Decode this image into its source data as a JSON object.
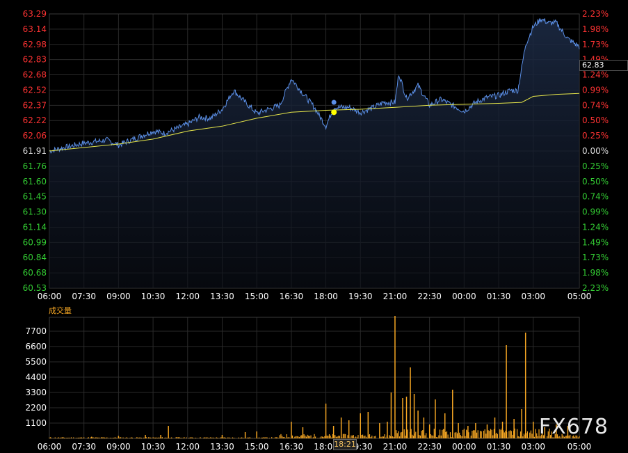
{
  "chart_data": [
    {
      "type": "line",
      "panel": "price",
      "left_axis_ticks": [
        "63.29",
        "63.14",
        "62.98",
        "62.83",
        "62.68",
        "62.52",
        "62.37",
        "62.22",
        "62.06",
        "61.91",
        "61.76",
        "61.60",
        "61.45",
        "61.30",
        "61.14",
        "60.99",
        "60.84",
        "60.68",
        "60.53"
      ],
      "right_axis_ticks": [
        "2.23%",
        "1.98%",
        "1.73%",
        "1.49%",
        "1.24%",
        "0.99%",
        "0.74%",
        "0.50%",
        "0.25%",
        "0.00%",
        "0.25%",
        "0.50%",
        "0.74%",
        "0.99%",
        "1.24%",
        "1.49%",
        "1.73%",
        "1.98%",
        "2.23%"
      ],
      "x_ticks": [
        "06:00",
        "07:30",
        "09:00",
        "10:30",
        "12:00",
        "13:30",
        "15:00",
        "16:30",
        "18:00",
        "19:30",
        "21:00",
        "22:30",
        "00:00",
        "01:30",
        "03:00",
        "05:00"
      ],
      "ylim": [
        60.53,
        63.29
      ],
      "reference_price": 61.91,
      "current_price": "62.83",
      "cursor_time": "18:21",
      "grid": true,
      "series": [
        {
          "color": "#5b8fe6",
          "x": [
            "06:00",
            "07:30",
            "08:30",
            "09:00",
            "10:30",
            "11:00",
            "12:00",
            "12:30",
            "13:00",
            "13:30",
            "14:00",
            "14:30",
            "15:00",
            "15:30",
            "16:00",
            "16:30",
            "17:00",
            "17:30",
            "18:00",
            "18:21",
            "19:00",
            "19:30",
            "20:00",
            "20:30",
            "21:00",
            "21:10",
            "21:30",
            "22:00",
            "22:30",
            "23:00",
            "23:30",
            "00:00",
            "00:30",
            "01:00",
            "01:30",
            "02:00",
            "02:20",
            "02:40",
            "03:00",
            "03:20",
            "03:40",
            "04:00",
            "04:30",
            "05:00"
          ],
          "values": [
            61.91,
            61.99,
            62.02,
            61.97,
            62.11,
            62.09,
            62.18,
            62.25,
            62.24,
            62.33,
            62.52,
            62.4,
            62.29,
            62.33,
            62.37,
            62.64,
            62.49,
            62.35,
            62.16,
            62.35,
            62.35,
            62.3,
            62.34,
            62.4,
            62.4,
            62.69,
            62.44,
            62.57,
            62.37,
            62.43,
            62.37,
            62.31,
            62.4,
            62.45,
            62.47,
            62.52,
            62.52,
            62.98,
            63.16,
            63.24,
            63.2,
            63.2,
            63.04,
            62.96
          ]
        },
        {
          "color": "#e6e64a",
          "x": [
            "06:00",
            "09:00",
            "10:30",
            "12:00",
            "13:30",
            "15:00",
            "16:30",
            "18:00",
            "19:30",
            "21:00",
            "22:30",
            "00:00",
            "01:30",
            "02:30",
            "03:00",
            "04:00",
            "05:00"
          ],
          "values": [
            61.91,
            61.98,
            62.03,
            62.11,
            62.16,
            62.24,
            62.3,
            62.32,
            62.33,
            62.35,
            62.37,
            62.38,
            62.39,
            62.4,
            62.46,
            62.48,
            62.49
          ]
        }
      ]
    },
    {
      "type": "bar",
      "panel": "volume",
      "title": "成交量",
      "y_ticks": [
        "7700",
        "6600",
        "5500",
        "4400",
        "3300",
        "2200",
        "1100"
      ],
      "ylim": [
        0,
        8700
      ],
      "color": "#f5a623",
      "spikes": [
        {
          "x": "07:50",
          "value": 120
        },
        {
          "x": "09:00",
          "value": 180
        },
        {
          "x": "10:10",
          "value": 250
        },
        {
          "x": "10:50",
          "value": 250
        },
        {
          "x": "11:10",
          "value": 900
        },
        {
          "x": "13:30",
          "value": 250
        },
        {
          "x": "14:30",
          "value": 450
        },
        {
          "x": "15:00",
          "value": 500
        },
        {
          "x": "16:30",
          "value": 1200
        },
        {
          "x": "17:00",
          "value": 800
        },
        {
          "x": "18:00",
          "value": 2500
        },
        {
          "x": "18:20",
          "value": 900
        },
        {
          "x": "18:40",
          "value": 1500
        },
        {
          "x": "19:00",
          "value": 1300
        },
        {
          "x": "19:30",
          "value": 1800
        },
        {
          "x": "19:50",
          "value": 1900
        },
        {
          "x": "20:20",
          "value": 1100
        },
        {
          "x": "20:40",
          "value": 1200
        },
        {
          "x": "20:50",
          "value": 3300
        },
        {
          "x": "21:00",
          "value": 8800
        },
        {
          "x": "21:20",
          "value": 2900
        },
        {
          "x": "21:30",
          "value": 3000
        },
        {
          "x": "21:40",
          "value": 5100
        },
        {
          "x": "21:50",
          "value": 3200
        },
        {
          "x": "22:00",
          "value": 2000
        },
        {
          "x": "22:15",
          "value": 1500
        },
        {
          "x": "22:30",
          "value": 1000
        },
        {
          "x": "22:45",
          "value": 2800
        },
        {
          "x": "23:10",
          "value": 1800
        },
        {
          "x": "23:30",
          "value": 3500
        },
        {
          "x": "23:45",
          "value": 1100
        },
        {
          "x": "00:10",
          "value": 900
        },
        {
          "x": "00:30",
          "value": 1100
        },
        {
          "x": "01:00",
          "value": 1000
        },
        {
          "x": "01:20",
          "value": 1500
        },
        {
          "x": "01:40",
          "value": 1200
        },
        {
          "x": "01:50",
          "value": 6700
        },
        {
          "x": "02:10",
          "value": 1400
        },
        {
          "x": "02:30",
          "value": 2100
        },
        {
          "x": "02:40",
          "value": 7600
        },
        {
          "x": "03:00",
          "value": 1200
        },
        {
          "x": "03:30",
          "value": 800
        },
        {
          "x": "04:00",
          "value": 1000
        },
        {
          "x": "04:30",
          "value": 900
        }
      ]
    }
  ],
  "volume_title": "成交量",
  "current_price_label": "62.83",
  "cursor_time_label": "18:21",
  "watermark": "FX678",
  "colors": {
    "background": "#000000",
    "grid": "#2a2a2a",
    "price_line": "#5b8fe6",
    "avg_line": "#e6e64a",
    "up_label": "#ff3333",
    "down_label": "#33cc33",
    "volume": "#f5a623"
  }
}
